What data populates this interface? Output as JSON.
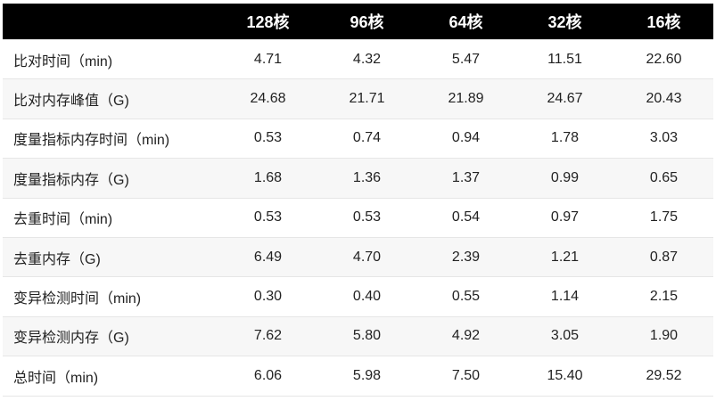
{
  "table": {
    "header": [
      "",
      "128核",
      "96核",
      "64核",
      "32核",
      "16核"
    ],
    "rows": [
      [
        "比对时间（min)",
        "4.71",
        "4.32",
        "5.47",
        "11.51",
        "22.60"
      ],
      [
        "比对内存峰值（G)",
        "24.68",
        "21.71",
        "21.89",
        "24.67",
        "20.43"
      ],
      [
        "度量指标内存时间（min)",
        "0.53",
        "0.74",
        "0.94",
        "1.78",
        "3.03"
      ],
      [
        "度量指标内存（G)",
        "1.68",
        "1.36",
        "1.37",
        "0.99",
        "0.65"
      ],
      [
        "去重时间（min)",
        "0.53",
        "0.53",
        "0.54",
        "0.97",
        "1.75"
      ],
      [
        "去重内存（G)",
        "6.49",
        "4.70",
        "2.39",
        "1.21",
        "0.87"
      ],
      [
        "变异检测时间（min)",
        "0.30",
        "0.40",
        "0.55",
        "1.14",
        "2.15"
      ],
      [
        "变异检测内存（G)",
        "7.62",
        "5.80",
        "4.92",
        "3.05",
        "1.90"
      ],
      [
        "总时间（min)",
        "6.06",
        "5.98",
        "7.50",
        "15.40",
        "29.52"
      ]
    ]
  }
}
